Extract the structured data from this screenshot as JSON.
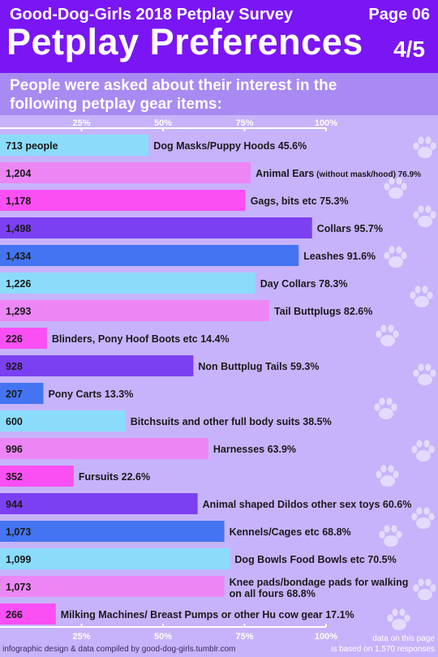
{
  "header": {
    "survey_title": "Good-Dog-Girls 2018 Petplay Survey",
    "page_label": "Page 06",
    "main_title": "Petplay Preferences",
    "part_label": "4/5"
  },
  "intro": {
    "text": "People were asked about their interest in the following petplay gear items:"
  },
  "footer": {
    "credit": "infographic design & data compiled by good-dog-girls.tumblr.com",
    "note_line1": "data on this page",
    "note_line2": "is based on 1,570 responses"
  },
  "colors": {
    "header": "#7a16f4",
    "intro": "#a98af2",
    "background": "#c7b3fb",
    "bar_cycle": [
      "#8bdcfb",
      "#ec86f5",
      "#f94ff3",
      "#7b40f1",
      "#4474f2"
    ],
    "paw": "#e8e2ff"
  },
  "chart_data": {
    "type": "bar",
    "orientation": "horizontal",
    "axis_ticks": [
      "25%",
      "50%",
      "75%",
      "100%"
    ],
    "xlim": [
      0,
      100
    ],
    "xunit": "percent",
    "grid": false,
    "categories": [
      "Dog Masks/Puppy Hoods",
      "Animal Ears",
      "Gags, bits etc",
      "Collars",
      "Leashes",
      "Day Collars",
      "Tail Buttplugs",
      "Blinders, Pony Hoof Boots etc",
      "Non Buttplug Tails",
      "Pony Carts",
      "Bitchsuits and other full body suits",
      "Harnesses",
      "Fursuits",
      "Animal shaped Dildos other sex toys",
      "Kennels/Cages etc",
      "Dog Bowls Food Bowls etc",
      "Knee pads/bondage pads for walking on all fours",
      "Milking Machines/ Breast Pumps or other Hu cow gear"
    ],
    "series": [
      {
        "values": [
          45.6,
          76.9,
          75.3,
          95.7,
          91.6,
          78.3,
          82.6,
          14.4,
          59.3,
          13.3,
          38.5,
          63.9,
          22.6,
          60.6,
          68.8,
          70.5,
          68.8,
          17.1
        ],
        "counts": [
          "713 people",
          "1,204",
          "1,178",
          "1,498",
          "1,434",
          "1,226",
          "1,293",
          "226",
          "928",
          "207",
          "600",
          "996",
          "352",
          "944",
          "1,073",
          "1,099",
          "1,073",
          "266"
        ],
        "labels": [
          "Dog Masks/Puppy Hoods 45.6%",
          "Animal Ears",
          "Gags, bits etc 75.3%",
          "Collars 95.7%",
          "Leashes 91.6%",
          "Day Collars 78.3%",
          "Tail Buttplugs 82.6%",
          "Blinders, Pony Hoof Boots etc 14.4%",
          "Non Buttplug Tails 59.3%",
          "Pony Carts 13.3%",
          "Bitchsuits and other full body suits 38.5%",
          "Harnesses 63.9%",
          "Fursuits 22.6%",
          "Animal shaped Dildos other sex toys 60.6%",
          "Kennels/Cages etc 68.8%",
          "Dog Bowls Food Bowls etc 70.5%",
          "Knee pads/bondage pads for walking",
          "Milking Machines/ Breast Pumps or other Hu cow gear 17.1%"
        ],
        "label_suffixes": [
          "",
          "(without mask/hood) 76.9%",
          "",
          "",
          "",
          "",
          "",
          "",
          "",
          "",
          "",
          "",
          "",
          "",
          "",
          "",
          "",
          ""
        ],
        "label_line2": [
          "",
          "",
          "",
          "",
          "",
          "",
          "",
          "",
          "",
          "",
          "",
          "",
          "",
          "",
          "",
          "",
          "on all fours 68.8%",
          ""
        ]
      }
    ]
  }
}
